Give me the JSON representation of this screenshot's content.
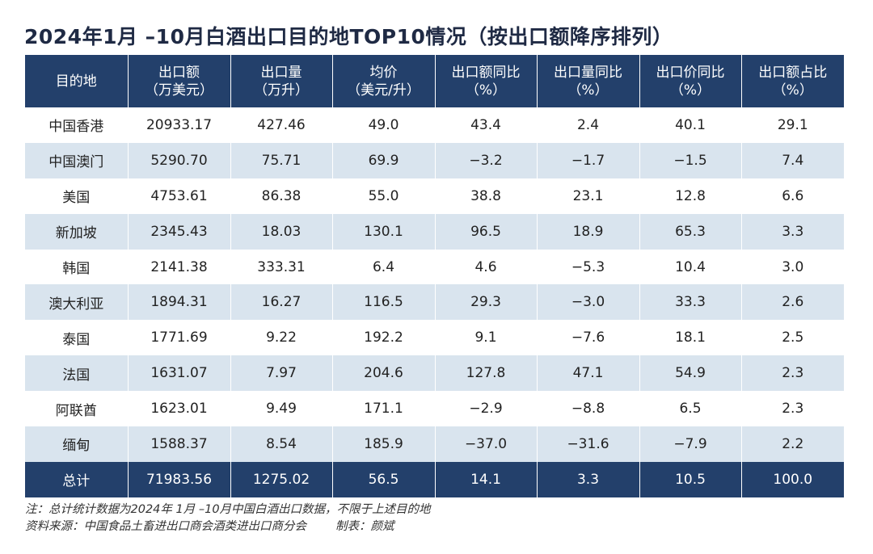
{
  "title": "2024年1月 –10月白酒出口目的地TOP10情况（按出口额降序排列）",
  "chart_data": {
    "type": "table",
    "title": "2024年1月 –10月白酒出口目的地TOP10情况（按出口额降序排列）",
    "columns": [
      {
        "line1": "目的地",
        "line2": ""
      },
      {
        "line1": "出口额",
        "line2": "（万美元）"
      },
      {
        "line1": "出口量",
        "line2": "（万升）"
      },
      {
        "line1": "均价",
        "line2": "（美元/升）"
      },
      {
        "line1": "出口额同比",
        "line2": "（%）"
      },
      {
        "line1": "出口量同比",
        "line2": "（%）"
      },
      {
        "line1": "出口价同比",
        "line2": "（%）"
      },
      {
        "line1": "出口额占比",
        "line2": "（%）"
      }
    ],
    "rows": [
      [
        "中国香港",
        "20933.17",
        "427.46",
        "49.0",
        "43.4",
        "2.4",
        "40.1",
        "29.1"
      ],
      [
        "中国澳门",
        "5290.70",
        "75.71",
        "69.9",
        "−3.2",
        "−1.7",
        "−1.5",
        "7.4"
      ],
      [
        "美国",
        "4753.61",
        "86.38",
        "55.0",
        "38.8",
        "23.1",
        "12.8",
        "6.6"
      ],
      [
        "新加坡",
        "2345.43",
        "18.03",
        "130.1",
        "96.5",
        "18.9",
        "65.3",
        "3.3"
      ],
      [
        "韩国",
        "2141.38",
        "333.31",
        "6.4",
        "4.6",
        "−5.3",
        "10.4",
        "3.0"
      ],
      [
        "澳大利亚",
        "1894.31",
        "16.27",
        "116.5",
        "29.3",
        "−3.0",
        "33.3",
        "2.6"
      ],
      [
        "泰国",
        "1771.69",
        "9.22",
        "192.2",
        "9.1",
        "−7.6",
        "18.1",
        "2.5"
      ],
      [
        "法国",
        "1631.07",
        "7.97",
        "204.6",
        "127.8",
        "47.1",
        "54.9",
        "2.3"
      ],
      [
        "阿联酋",
        "1623.01",
        "9.49",
        "171.1",
        "−2.9",
        "−8.8",
        "6.5",
        "2.3"
      ],
      [
        "缅甸",
        "1588.37",
        "8.54",
        "185.9",
        "−37.0",
        "−31.6",
        "−7.9",
        "2.2"
      ]
    ],
    "total": [
      "总计",
      "71983.56",
      "1275.02",
      "56.5",
      "14.1",
      "3.3",
      "10.5",
      "100.0"
    ]
  },
  "notes": {
    "note": "注：总计统计数据为2024年 1月 –10月中国白酒出口数据，不限于上述目的地",
    "source": "资料来源：中国食品土畜进出口商会酒类进出口商分会",
    "maker": "制表：颜斌"
  },
  "colors": {
    "header_bg": "#23406b",
    "stripe": "#d9e4ee",
    "title": "#1f2a44"
  }
}
